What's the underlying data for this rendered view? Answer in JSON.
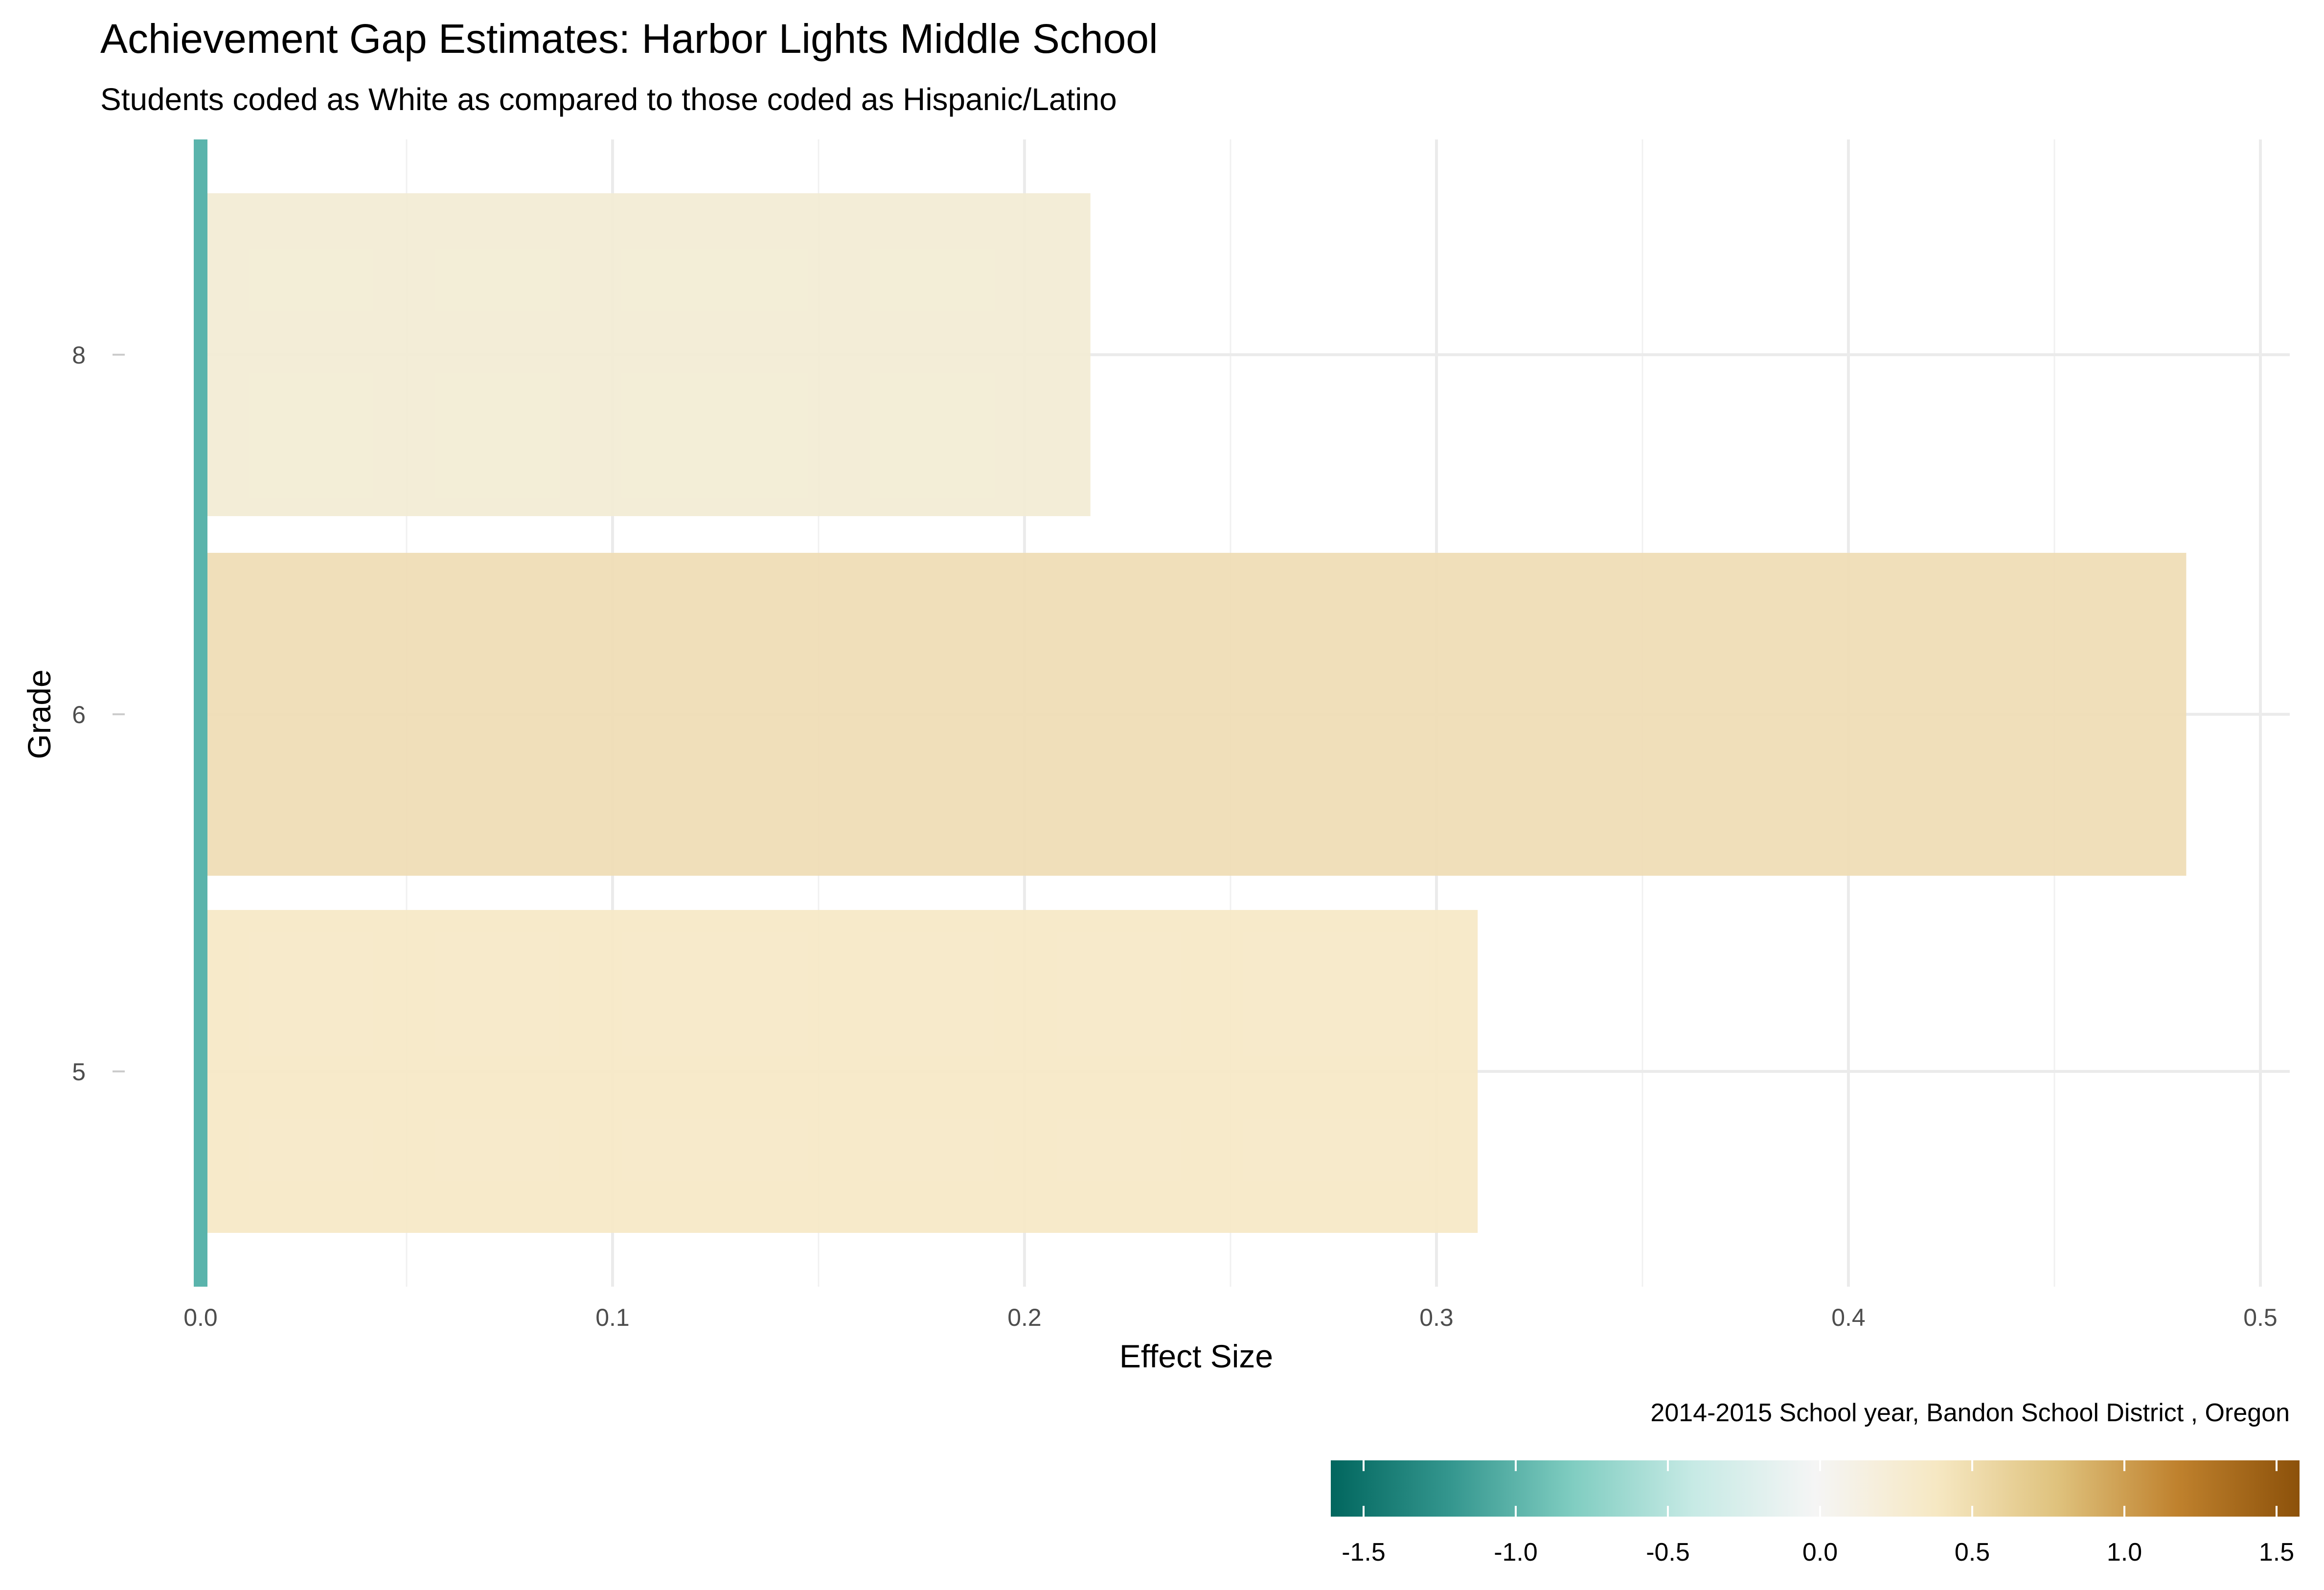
{
  "chart_data": {
    "type": "bar",
    "orientation": "horizontal",
    "title": "Achievement Gap Estimates: Harbor Lights Middle School",
    "subtitle": "Students coded as White as compared to those coded as Hispanic/Latino",
    "xlabel": "Effect Size",
    "ylabel": "Grade",
    "caption": "2014-2015 School year,  Bandon School District , Oregon",
    "categories": [
      "5",
      "6",
      "8"
    ],
    "values": [
      0.31,
      0.482,
      0.216
    ],
    "xlim": [
      0,
      0.5
    ],
    "x_ticks": [
      "0.0",
      "0.1",
      "0.2",
      "0.3",
      "0.4",
      "0.5"
    ],
    "grid": true,
    "bar_colors": [
      "#f6e8c6",
      "#efdcb4",
      "#f2ecd4"
    ],
    "zero_line_color": "#5ab4ac",
    "legend": {
      "placement": "bottom-right",
      "type": "colorbar",
      "palette": "BrBG",
      "range": [
        -1.5,
        1.5
      ],
      "tick_values": [
        -1.5,
        -1.0,
        -0.5,
        0.0,
        0.5,
        1.0,
        1.5
      ],
      "tick_labels": [
        "-1.5",
        "-1.0",
        "-0.5",
        "0.0",
        "0.5",
        "1.0",
        "1.5"
      ],
      "colors": [
        "#01665e",
        "#35978f",
        "#80cdc1",
        "#c7eae5",
        "#f5f5f5",
        "#f6e8c3",
        "#dfc27d",
        "#bf812d",
        "#8c510a"
      ]
    }
  }
}
